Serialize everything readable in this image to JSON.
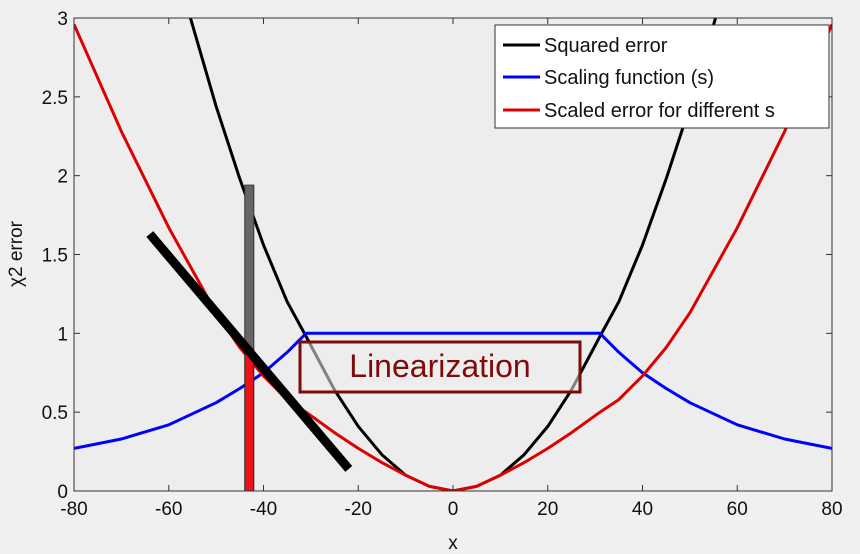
{
  "chart_data": {
    "type": "line",
    "title": "",
    "xlabel": "x",
    "ylabel": "χ2 error",
    "xlim": [
      -80,
      80
    ],
    "ylim": [
      0,
      3
    ],
    "xticks": [
      -80,
      -60,
      -40,
      -20,
      0,
      20,
      40,
      60,
      80
    ],
    "yticks": [
      0,
      0.5,
      1,
      1.5,
      2,
      2.5,
      3
    ],
    "ytick_labels": [
      "0",
      "0.5",
      "1",
      "1.5",
      "2",
      "2.5",
      "3"
    ],
    "grid": false,
    "legend_position": "top-right",
    "series": [
      {
        "name": "Squared error",
        "color": "#000000",
        "x": [
          -56,
          -50,
          -45,
          -40,
          -35,
          -31,
          -25,
          -20,
          -15,
          -10,
          -5,
          0,
          5,
          10,
          15,
          20,
          25,
          31,
          35,
          40,
          45,
          50,
          56
        ],
        "y": [
          3.06,
          2.44,
          1.98,
          1.56,
          1.2,
          0.98,
          0.64,
          0.41,
          0.23,
          0.1,
          0.03,
          0.0,
          0.03,
          0.1,
          0.23,
          0.41,
          0.64,
          0.98,
          1.2,
          1.56,
          1.98,
          2.44,
          3.06
        ]
      },
      {
        "name": "Scaling function (s)",
        "color": "#0000ff",
        "x": [
          -80,
          -70,
          -60,
          -50,
          -45,
          -40,
          -35,
          -31,
          -20,
          -10,
          0,
          10,
          20,
          31,
          35,
          40,
          45,
          50,
          60,
          70,
          80
        ],
        "y": [
          0.27,
          0.33,
          0.42,
          0.56,
          0.65,
          0.75,
          0.88,
          1.0,
          1.0,
          1.0,
          1.0,
          1.0,
          1.0,
          1.0,
          0.88,
          0.75,
          0.65,
          0.56,
          0.42,
          0.33,
          0.27
        ]
      },
      {
        "name": "Scaled error for different s",
        "color": "#dd0000",
        "x": [
          -80,
          -70,
          -60,
          -50,
          -45,
          -40,
          -35,
          -31,
          -25,
          -20,
          -15,
          -10,
          -5,
          0,
          5,
          10,
          15,
          20,
          25,
          31,
          35,
          40,
          45,
          50,
          60,
          70,
          80
        ],
        "y": [
          2.96,
          2.28,
          1.67,
          1.13,
          0.91,
          0.73,
          0.58,
          0.5,
          0.37,
          0.27,
          0.18,
          0.1,
          0.03,
          0.0,
          0.03,
          0.1,
          0.18,
          0.27,
          0.37,
          0.5,
          0.58,
          0.73,
          0.91,
          1.13,
          1.67,
          2.28,
          2.96
        ]
      }
    ],
    "annotations": {
      "text": "Linearization",
      "box_color": "#7f0a0a",
      "tangent_line": {
        "x": [
          -64,
          -22
        ],
        "y": [
          1.63,
          0.14
        ],
        "color": "#000000"
      },
      "gray_bar": {
        "x": -43,
        "y_from": 0.9,
        "y_to": 1.94,
        "color": "#666666"
      },
      "red_bar": {
        "x": -43,
        "y_from": 0,
        "y_to": 0.9,
        "color": "#e8141a"
      }
    }
  }
}
